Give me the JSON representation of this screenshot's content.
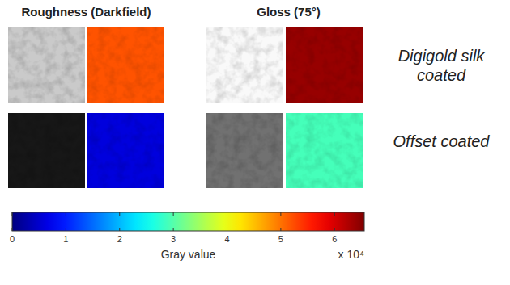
{
  "chart_data": {
    "type": "heatmap",
    "columns": [
      "Roughness (Darkfield)",
      "Gloss (75°)"
    ],
    "rows": [
      "Digigold silk coated",
      "Offset coated"
    ],
    "cells": [
      [
        52000,
        64000
      ],
      [
        6000,
        29000
      ]
    ],
    "color_bar": {
      "label": "Gray value",
      "exponent_label": "x 10⁴",
      "range": [
        0,
        65535
      ],
      "ticks": [
        {
          "value": 0,
          "label": "0"
        },
        {
          "value": 10000,
          "label": "1"
        },
        {
          "value": 20000,
          "label": "2"
        },
        {
          "value": 30000,
          "label": "3"
        },
        {
          "value": 40000,
          "label": "4"
        },
        {
          "value": 50000,
          "label": "5"
        },
        {
          "value": 60000,
          "label": "6"
        }
      ]
    }
  }
}
